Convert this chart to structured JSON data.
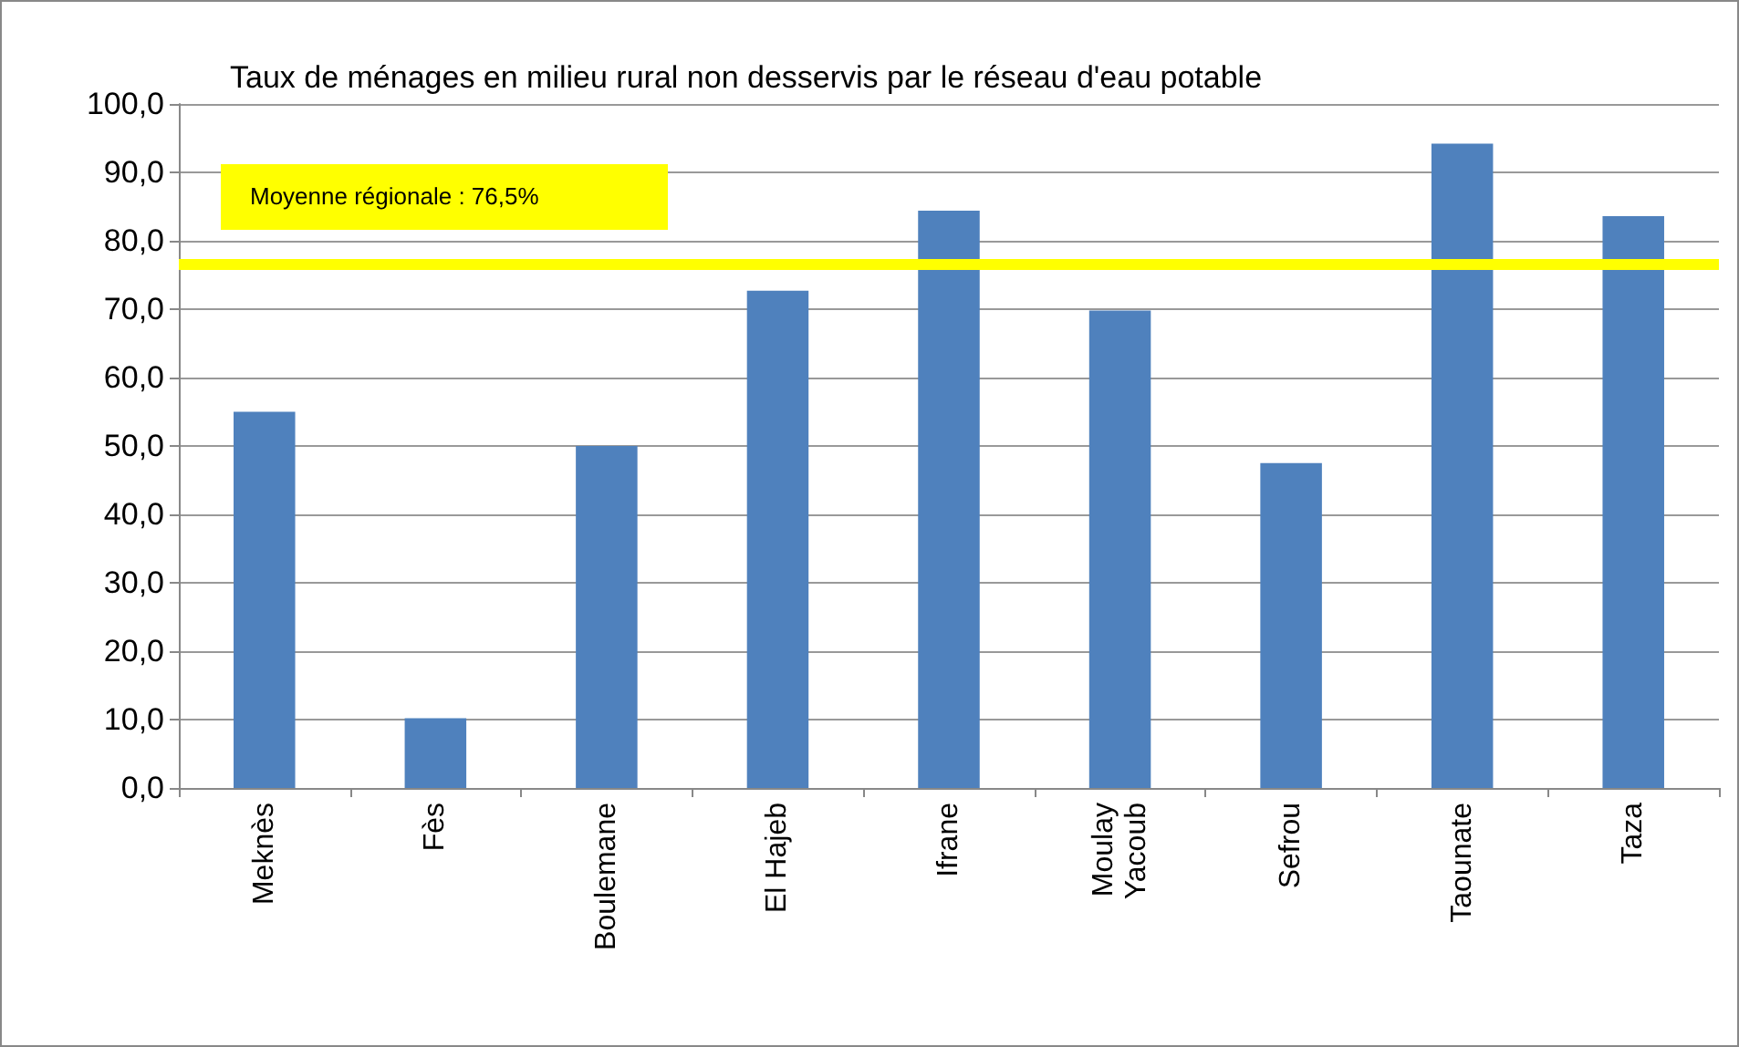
{
  "chart_data": {
    "type": "bar",
    "title": "Taux de ménages en milieu rural non desservis par le réseau d'eau potable",
    "categories": [
      "Meknès",
      "Fès",
      "Boulemane",
      "El Hajeb",
      "Ifrane",
      "Moulay\nYacoub",
      "Sefrou",
      "Taounate",
      "Taza"
    ],
    "values": [
      55.0,
      10.2,
      50.0,
      72.7,
      84.4,
      69.8,
      47.5,
      94.2,
      83.6
    ],
    "color": "#4f81bd",
    "ylim": [
      0,
      100
    ],
    "yticks": [
      {
        "value": 0,
        "label": "0,0"
      },
      {
        "value": 10,
        "label": "10,0"
      },
      {
        "value": 20,
        "label": "20,0"
      },
      {
        "value": 30,
        "label": "30,0"
      },
      {
        "value": 40,
        "label": "40,0"
      },
      {
        "value": 50,
        "label": "50,0"
      },
      {
        "value": 60,
        "label": "60,0"
      },
      {
        "value": 70,
        "label": "70,0"
      },
      {
        "value": 80,
        "label": "80,0"
      },
      {
        "value": 90,
        "label": "90,0"
      },
      {
        "value": 100,
        "label": "100,0"
      }
    ],
    "ref_lines": [
      {
        "axis": "y",
        "value": 76.5,
        "label": "Moyenne régionale : 76,5%",
        "color": "#ffff00"
      }
    ],
    "grid": "y"
  }
}
